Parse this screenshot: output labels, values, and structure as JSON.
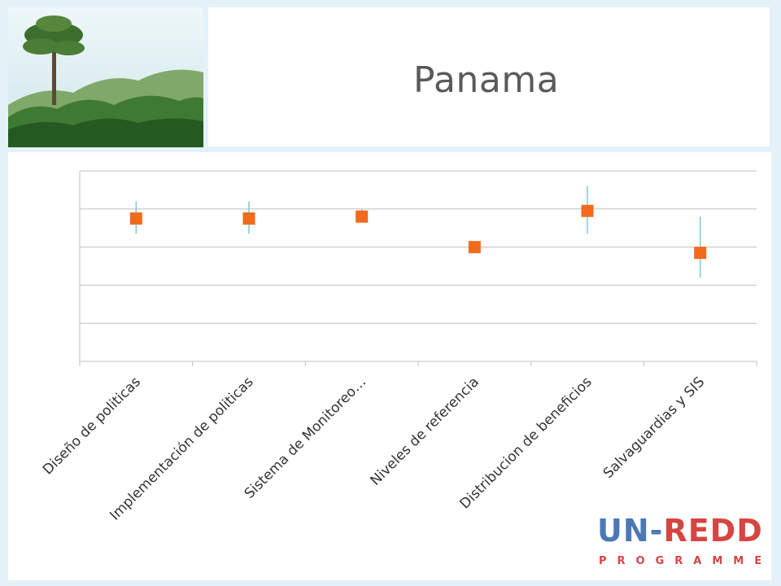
{
  "slide": {
    "title": "Panama"
  },
  "logo": {
    "main_left": "UN-",
    "main_right": "REDD",
    "sub": "PROGRAMME",
    "colors": {
      "un": "#4a79b5",
      "redd": "#d64541"
    }
  },
  "chart_data": {
    "type": "scatter",
    "categories": [
      "Diseño de politicas",
      "Implementación de politicas",
      "Sistema de Monitoreo…",
      "Niveles de referencia",
      "Distribucion de beneficios",
      "Salvaguardias y SIS"
    ],
    "values": [
      3.75,
      3.75,
      3.8,
      3.0,
      3.95,
      2.85
    ],
    "error_low": [
      3.35,
      3.35,
      3.7,
      3.0,
      3.35,
      2.2
    ],
    "error_high": [
      4.2,
      4.2,
      4.0,
      3.0,
      4.6,
      3.8
    ],
    "ylim": [
      0,
      5
    ],
    "grid": true,
    "title": "",
    "xlabel": "",
    "ylabel": "",
    "colors": {
      "marker": "#f26b1d",
      "error_bar": "#7ec8de",
      "grid": "#bfbfbf"
    }
  }
}
